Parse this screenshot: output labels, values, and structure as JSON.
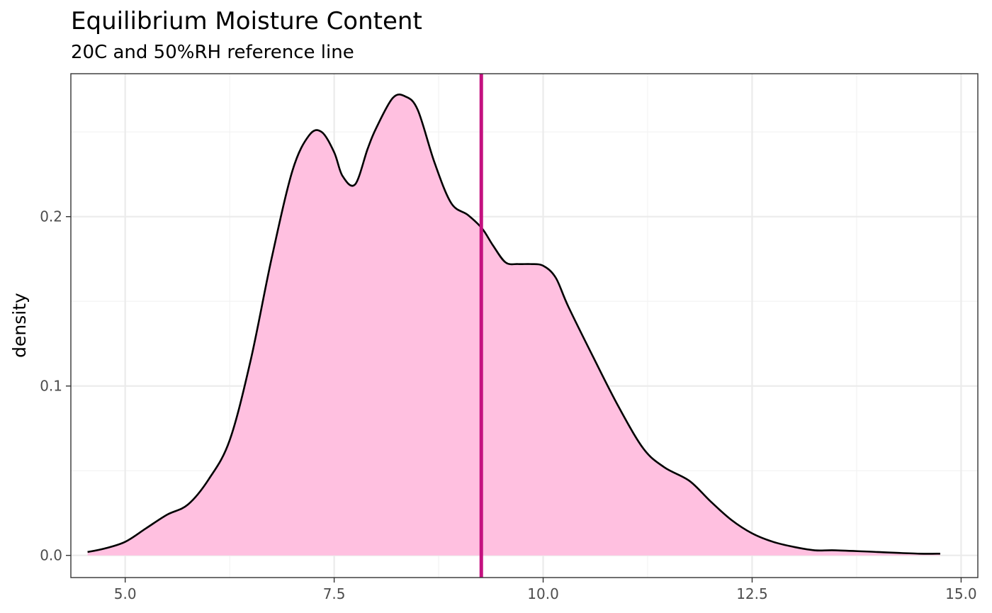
{
  "chart_data": {
    "type": "area",
    "title": "Equilibrium Moisture Content",
    "subtitle": "20C and 50%RH reference line",
    "xlabel": "",
    "ylabel": "density",
    "xlim": [
      4.35,
      15.2
    ],
    "ylim": [
      -0.0131,
      0.2844
    ],
    "x_ticks": [
      5.0,
      7.5,
      10.0,
      12.5,
      15.0
    ],
    "x_tick_labels": [
      "5.0",
      "7.5",
      "10.0",
      "12.5",
      "15.0"
    ],
    "y_ticks": [
      0.0,
      0.1,
      0.2
    ],
    "y_tick_labels": [
      "0.0",
      "0.1",
      "0.2"
    ],
    "grid": true,
    "reference_line": {
      "x": 9.26,
      "color": "#c4117f"
    },
    "fill_color": "#ffc0e0",
    "line_color": "#000000",
    "series": [
      {
        "x": [
          4.55,
          4.75,
          5.0,
          5.25,
          5.5,
          5.75,
          6.0,
          6.25,
          6.5,
          6.75,
          7.0,
          7.2,
          7.35,
          7.5,
          7.6,
          7.75,
          7.9,
          8.0,
          8.2,
          8.35,
          8.5,
          8.7,
          8.9,
          9.1,
          9.27,
          9.4,
          9.55,
          9.7,
          9.85,
          10.0,
          10.15,
          10.3,
          10.6,
          10.9,
          11.2,
          11.45,
          11.75,
          12.0,
          12.25,
          12.5,
          12.75,
          13.0,
          13.25,
          13.5,
          14.0,
          14.5,
          14.75
        ],
        "y": [
          0.002,
          0.004,
          0.008,
          0.016,
          0.024,
          0.03,
          0.045,
          0.068,
          0.115,
          0.175,
          0.227,
          0.248,
          0.25,
          0.238,
          0.224,
          0.219,
          0.24,
          0.252,
          0.27,
          0.271,
          0.263,
          0.232,
          0.208,
          0.201,
          0.193,
          0.183,
          0.173,
          0.172,
          0.172,
          0.171,
          0.164,
          0.147,
          0.117,
          0.088,
          0.063,
          0.052,
          0.044,
          0.032,
          0.021,
          0.013,
          0.008,
          0.005,
          0.003,
          0.003,
          0.002,
          0.001,
          0.001
        ]
      }
    ]
  }
}
